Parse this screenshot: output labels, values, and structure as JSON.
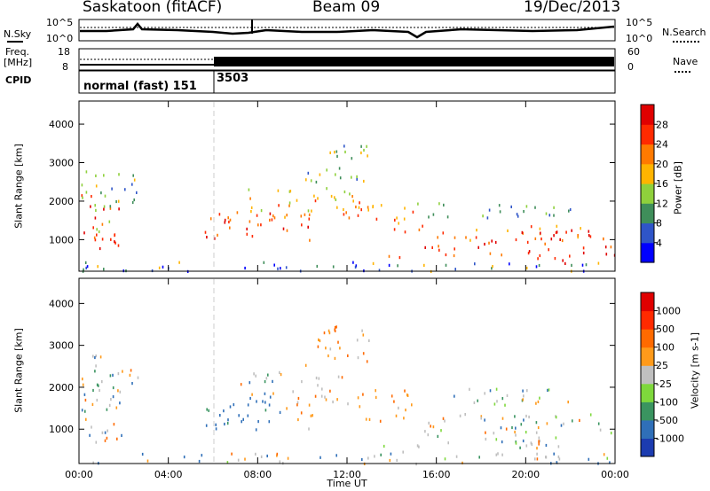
{
  "header": {
    "station": "Saskatoon (fitACF)",
    "beam": "Beam 09",
    "date": "19/Dec/2013"
  },
  "panels": {
    "noise": {
      "left_label": "N.Sky",
      "right_label": "N.Search",
      "left_ticks": [
        "10^5",
        "10^0"
      ],
      "right_ticks": [
        "10^5",
        "10^0"
      ]
    },
    "freq": {
      "left_label_1": "Freq.",
      "left_label_2": "[MHz]",
      "right_label": "Nave",
      "left_ticks": [
        "18",
        "8"
      ],
      "right_ticks": [
        "60",
        "0"
      ]
    },
    "cpid": {
      "label": "CPID",
      "modes": [
        {
          "text": "normal (fast) 151",
          "start_hour": 0
        },
        {
          "text": "3503",
          "start_hour": 6
        }
      ]
    }
  },
  "chart_data": [
    {
      "type": "heatmap",
      "title": "",
      "ylabel": "Slant Range [km]",
      "xlabel": "",
      "x_ticks": [
        "00:00",
        "04:00",
        "08:00",
        "12:00",
        "16:00",
        "20:00",
        "00:00"
      ],
      "y_ticks": [
        1000,
        2000,
        3000,
        4000
      ],
      "xlim_hours": [
        0,
        24
      ],
      "ylim_km": [
        180,
        4600
      ],
      "colorbar": {
        "label": "Power [dB]",
        "ticks": [
          "4",
          "8",
          "12",
          "16",
          "20",
          "24",
          "28"
        ],
        "colors": [
          "#0000ff",
          "#2f55c8",
          "#3f8e5a",
          "#8fd03c",
          "#ffb400",
          "#ff7a00",
          "#ff2a00",
          "#e00000"
        ]
      }
    },
    {
      "type": "heatmap",
      "title": "",
      "ylabel": "Slant Range [km]",
      "xlabel": "Time UT",
      "x_ticks": [
        "00:00",
        "04:00",
        "08:00",
        "12:00",
        "16:00",
        "20:00",
        "00:00"
      ],
      "y_ticks": [
        1000,
        2000,
        3000,
        4000
      ],
      "xlim_hours": [
        0,
        24
      ],
      "ylim_km": [
        180,
        4600
      ],
      "colorbar": {
        "label": "Velocity [m s-1]",
        "ticks": [
          "1000",
          "500",
          "100",
          "25",
          "-25",
          "-100",
          "-500",
          "-1000"
        ],
        "colors": [
          "#1c3cb0",
          "#2f6fb8",
          "#3a9460",
          "#7ed83c",
          "#bfbfbf",
          "#ff9a1a",
          "#ff6a00",
          "#ff2a00",
          "#e00000"
        ]
      }
    }
  ],
  "data_regions": [
    {
      "t0": 0.1,
      "t1": 1.9,
      "r0": 800,
      "r1": 2300,
      "pal": [
        5,
        6,
        7,
        3
      ]
    },
    {
      "t0": 0.1,
      "t1": 2.7,
      "r0": 1900,
      "r1": 2800,
      "pal": [
        3,
        4,
        1,
        2
      ]
    },
    {
      "t0": 0.6,
      "t1": 2.0,
      "r0": 700,
      "r1": 1200,
      "pal": [
        6,
        7,
        5
      ]
    },
    {
      "t0": 5.5,
      "t1": 10.5,
      "r0": 1000,
      "r1": 1750,
      "pal": [
        7,
        6,
        5
      ]
    },
    {
      "t0": 7.0,
      "t1": 12.5,
      "r0": 1600,
      "r1": 2400,
      "pal": [
        5,
        6,
        4,
        3
      ]
    },
    {
      "t0": 10.0,
      "t1": 13.0,
      "r0": 2500,
      "r1": 3500,
      "pal": [
        3,
        2,
        4,
        1
      ]
    },
    {
      "t0": 12.5,
      "t1": 15.0,
      "r0": 1200,
      "r1": 2000,
      "pal": [
        6,
        5,
        4
      ]
    },
    {
      "t0": 15.0,
      "t1": 24.0,
      "r0": 600,
      "r1": 1400,
      "pal": [
        7,
        6,
        5,
        4
      ]
    },
    {
      "t0": 15.0,
      "t1": 22.0,
      "r0": 1600,
      "r1": 2000,
      "pal": [
        1,
        2,
        3
      ]
    },
    {
      "t0": 19.5,
      "t1": 22.0,
      "r0": 350,
      "r1": 700,
      "pal": [
        7,
        6
      ]
    },
    {
      "t0": 13.5,
      "t1": 14.7,
      "r0": 450,
      "r1": 650,
      "pal": [
        6,
        5
      ]
    },
    {
      "t0": 0.0,
      "t1": 24.0,
      "r0": 200,
      "r1": 450,
      "pal": [
        0,
        1,
        2,
        4
      ]
    }
  ]
}
